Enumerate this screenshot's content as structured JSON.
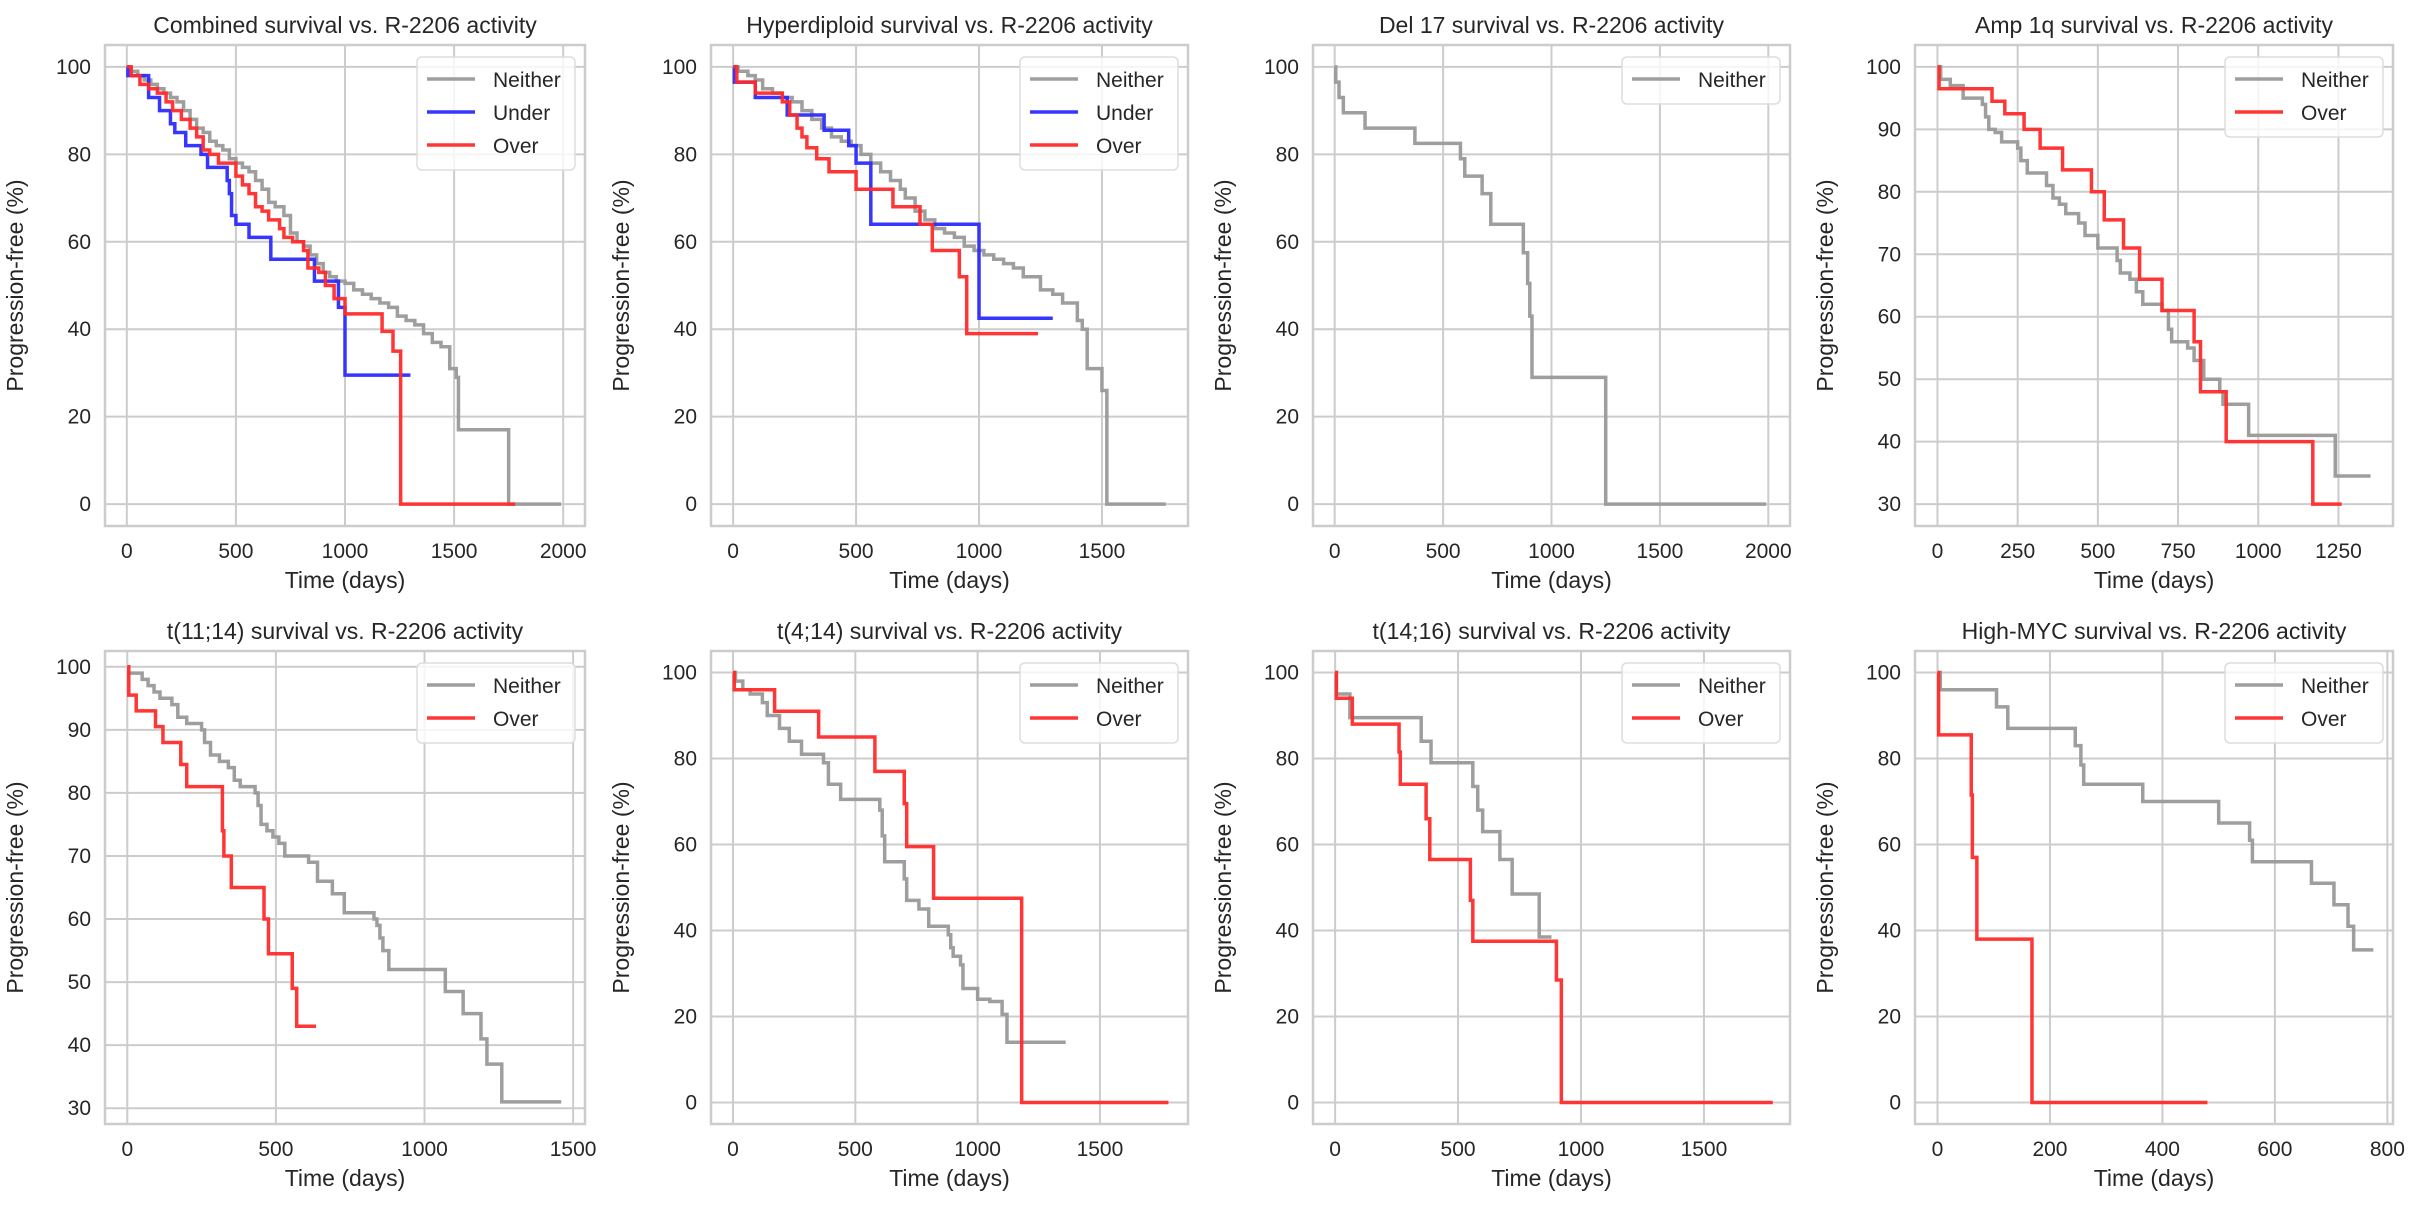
{
  "figure": {
    "layout": "2 rows x 4 columns",
    "series_colors": {
      "Neither": "#999999",
      "Under": "#2b2bff",
      "Over": "#ff2b2b"
    },
    "grid_color": "#cccccc",
    "frame_color": "#cccccc"
  },
  "chart_data": [
    {
      "type": "line",
      "step": true,
      "title": "Combined survival vs. R-2206 activity",
      "xlabel": "Time (days)",
      "ylabel": "Progression-free (%)",
      "xlim": [
        -100,
        2100
      ],
      "ylim": [
        -5,
        105
      ],
      "xticks": [
        0,
        500,
        1000,
        1500,
        2000
      ],
      "yticks": [
        0,
        20,
        40,
        60,
        80,
        100
      ],
      "grid": true,
      "legend": "top-right",
      "series": [
        {
          "name": "Neither",
          "x": [
            0,
            20,
            50,
            80,
            110,
            140,
            170,
            200,
            230,
            260,
            290,
            320,
            350,
            380,
            410,
            440,
            470,
            500,
            530,
            560,
            590,
            620,
            650,
            680,
            720,
            750,
            780,
            810,
            840,
            870,
            900,
            930,
            960,
            1000,
            1040,
            1080,
            1120,
            1160,
            1200,
            1240,
            1280,
            1320,
            1360,
            1400,
            1440,
            1480,
            1510,
            1520,
            1750,
            1990
          ],
          "y": [
            100,
            99,
            98,
            97,
            96,
            95,
            94,
            93,
            92,
            90,
            88,
            86,
            85,
            83,
            82,
            81,
            79,
            78,
            77,
            76,
            74,
            72,
            69,
            68,
            66,
            62,
            60,
            59,
            57,
            55,
            53,
            52,
            51,
            50.5,
            49,
            48,
            47,
            46,
            45,
            43,
            42,
            41,
            39,
            37,
            36,
            31,
            29,
            17,
            0,
            0
          ]
        },
        {
          "name": "Under",
          "x": [
            0,
            5,
            90,
            100,
            130,
            150,
            200,
            220,
            270,
            340,
            370,
            460,
            470,
            480,
            500,
            560,
            660,
            850,
            860,
            970,
            1000,
            1300
          ],
          "y": [
            100,
            98,
            98,
            93,
            93,
            90,
            87,
            85,
            82,
            80,
            77,
            74,
            71,
            66,
            64,
            61,
            56,
            56,
            51,
            45,
            29.5,
            29.5
          ]
        },
        {
          "name": "Over",
          "x": [
            0,
            20,
            60,
            100,
            140,
            180,
            210,
            250,
            290,
            320,
            350,
            380,
            420,
            470,
            500,
            530,
            560,
            590,
            620,
            650,
            700,
            720,
            760,
            810,
            830,
            880,
            910,
            950,
            1000,
            1170,
            1220,
            1255,
            1780
          ],
          "y": [
            100,
            98,
            96,
            95,
            94,
            92,
            90,
            88,
            86,
            84,
            81,
            80,
            78,
            78,
            75,
            73,
            71,
            68,
            67,
            65,
            63,
            61,
            60,
            58,
            54,
            53,
            50,
            47,
            43.5,
            39.5,
            35,
            0,
            0
          ]
        }
      ]
    },
    {
      "type": "line",
      "step": true,
      "title": "Hyperdiploid survival vs. R-2206 activity",
      "xlabel": "Time (days)",
      "ylabel": "Progression-free (%)",
      "xlim": [
        -90,
        1850
      ],
      "ylim": [
        -5,
        105
      ],
      "xticks": [
        0,
        500,
        1000,
        1500
      ],
      "yticks": [
        0,
        20,
        40,
        60,
        80,
        100
      ],
      "grid": true,
      "legend": "top-right",
      "series": [
        {
          "name": "Neither",
          "x": [
            0,
            20,
            60,
            90,
            120,
            160,
            200,
            240,
            280,
            320,
            360,
            400,
            440,
            480,
            520,
            560,
            600,
            640,
            680,
            700,
            740,
            780,
            820,
            860,
            900,
            940,
            980,
            1020,
            1060,
            1100,
            1140,
            1180,
            1250,
            1300,
            1340,
            1400,
            1420,
            1440,
            1500,
            1520,
            1760
          ],
          "y": [
            100,
            99,
            98,
            97,
            95,
            94,
            93,
            92,
            90,
            88,
            86,
            84,
            83,
            82,
            80,
            78,
            76,
            74,
            72,
            70,
            67,
            65,
            63,
            62,
            61,
            59,
            58,
            57,
            56,
            55,
            54,
            52,
            49,
            48,
            46,
            42,
            40,
            31,
            26,
            0,
            0
          ]
        },
        {
          "name": "Under",
          "x": [
            0,
            5,
            90,
            220,
            370,
            470,
            500,
            560,
            1000,
            1300
          ],
          "y": [
            100,
            96.5,
            93,
            89,
            85.5,
            82,
            78,
            64,
            42.5,
            42.5
          ]
        },
        {
          "name": "Over",
          "x": [
            0,
            15,
            90,
            200,
            230,
            260,
            280,
            300,
            340,
            390,
            500,
            650,
            760,
            810,
            920,
            950,
            1240
          ],
          "y": [
            100,
            96.5,
            94,
            92,
            89,
            86,
            84,
            81.5,
            79,
            76,
            72,
            68,
            64,
            58,
            52,
            39,
            39
          ]
        }
      ]
    },
    {
      "type": "line",
      "step": true,
      "title": "Del 17 survival vs. R-2206 activity",
      "xlabel": "Time (days)",
      "ylabel": "Progression-free (%)",
      "xlim": [
        -100,
        2100
      ],
      "ylim": [
        -5,
        105
      ],
      "xticks": [
        0,
        500,
        1000,
        1500,
        2000
      ],
      "yticks": [
        0,
        20,
        40,
        60,
        80,
        100
      ],
      "grid": true,
      "legend": "top-right",
      "series": [
        {
          "name": "Neither",
          "x": [
            0,
            5,
            20,
            40,
            140,
            370,
            580,
            600,
            680,
            720,
            870,
            890,
            900,
            910,
            1250,
            1990
          ],
          "y": [
            100,
            96.5,
            93,
            89.5,
            86,
            82.5,
            79,
            75,
            71,
            64,
            57.5,
            50.5,
            43,
            29,
            0,
            0
          ]
        }
      ]
    },
    {
      "type": "line",
      "step": true,
      "title": "Amp 1q survival vs. R-2206 activity",
      "xlabel": "Time (days)",
      "ylabel": "Progression-free (%)",
      "xlim": [
        -70,
        1420
      ],
      "ylim": [
        26.5,
        103.5
      ],
      "xticks": [
        0,
        250,
        500,
        750,
        1000,
        1250
      ],
      "yticks": [
        30,
        40,
        50,
        60,
        70,
        80,
        90,
        100
      ],
      "grid": true,
      "legend": "top-right",
      "series": [
        {
          "name": "Neither",
          "x": [
            0,
            10,
            40,
            80,
            140,
            150,
            160,
            180,
            200,
            250,
            260,
            280,
            340,
            360,
            380,
            400,
            440,
            460,
            500,
            520,
            560,
            570,
            600,
            620,
            640,
            700,
            720,
            730,
            780,
            800,
            830,
            880,
            890,
            970,
            1240,
            1350
          ],
          "y": [
            100,
            98,
            97,
            95,
            94,
            92,
            90,
            89.5,
            88,
            87,
            85,
            83,
            81,
            79,
            78,
            76.5,
            75,
            73,
            71,
            71,
            69,
            67,
            66,
            64,
            62,
            61,
            58,
            56,
            55,
            53,
            50,
            48,
            46,
            41,
            34.5,
            34.5
          ]
        },
        {
          "name": "Over",
          "x": [
            0,
            5,
            170,
            210,
            270,
            320,
            390,
            480,
            520,
            580,
            630,
            700,
            800,
            820,
            900,
            1170,
            1260
          ],
          "y": [
            100,
            96.5,
            94.5,
            92.5,
            90,
            87,
            83.5,
            80,
            75.5,
            71,
            66,
            61,
            56,
            48,
            40,
            30,
            30
          ]
        }
      ]
    },
    {
      "type": "line",
      "step": true,
      "title": "t(11;14) survival vs. R-2206 activity",
      "xlabel": "Time (days)",
      "ylabel": "Progression-free (%)",
      "xlim": [
        -75,
        1540
      ],
      "ylim": [
        27.5,
        102.5
      ],
      "xticks": [
        0,
        500,
        1000,
        1500
      ],
      "yticks": [
        30,
        40,
        50,
        60,
        70,
        80,
        90,
        100
      ],
      "grid": true,
      "legend": "top-right",
      "series": [
        {
          "name": "Neither",
          "x": [
            0,
            50,
            70,
            90,
            110,
            150,
            170,
            200,
            250,
            260,
            280,
            310,
            340,
            360,
            380,
            430,
            440,
            450,
            470,
            490,
            510,
            530,
            610,
            640,
            690,
            730,
            830,
            840,
            850,
            860,
            880,
            1070,
            1130,
            1190,
            1210,
            1260,
            1460
          ],
          "y": [
            99,
            98,
            97,
            96,
            95,
            94,
            92,
            91,
            90,
            88,
            86,
            85,
            84,
            82,
            81,
            80,
            78,
            75,
            74,
            73,
            72,
            70,
            69,
            66,
            64,
            61,
            60,
            59,
            57,
            55,
            52,
            48.5,
            45,
            41,
            37,
            31,
            31
          ]
        },
        {
          "name": "Over",
          "x": [
            0,
            5,
            30,
            95,
            120,
            180,
            200,
            320,
            325,
            350,
            460,
            475,
            555,
            570,
            635
          ],
          "y": [
            100,
            95.5,
            93,
            90.5,
            88,
            84.5,
            81,
            74,
            70,
            65,
            60,
            54.5,
            49,
            43,
            43
          ]
        }
      ]
    },
    {
      "type": "line",
      "step": true,
      "title": "t(4;14) survival vs. R-2206 activity",
      "xlabel": "Time (days)",
      "ylabel": "Progression-free (%)",
      "xlim": [
        -90,
        1860
      ],
      "ylim": [
        -5,
        105
      ],
      "xticks": [
        0,
        500,
        1000,
        1500
      ],
      "yticks": [
        0,
        20,
        40,
        60,
        80,
        100
      ],
      "grid": true,
      "legend": "top-right",
      "series": [
        {
          "name": "Neither",
          "x": [
            0,
            10,
            40,
            70,
            120,
            140,
            190,
            230,
            280,
            370,
            390,
            440,
            600,
            610,
            620,
            640,
            700,
            710,
            760,
            800,
            880,
            890,
            900,
            930,
            940,
            1000,
            1050,
            1100,
            1120,
            1360
          ],
          "y": [
            100,
            98,
            96,
            95,
            93,
            90,
            87,
            84,
            81,
            79,
            74,
            70.5,
            68,
            62,
            56,
            56,
            52,
            47,
            45,
            41,
            39,
            36,
            34,
            32,
            26.5,
            24,
            23.5,
            20.5,
            14,
            14
          ]
        },
        {
          "name": "Over",
          "x": [
            0,
            5,
            170,
            350,
            580,
            700,
            710,
            820,
            1180,
            1780
          ],
          "y": [
            100,
            96,
            91,
            85,
            77,
            69.5,
            59.5,
            47.5,
            0,
            0
          ]
        }
      ]
    },
    {
      "type": "line",
      "step": true,
      "title": "t(14;16) survival vs. R-2206 activity",
      "xlabel": "Time (days)",
      "ylabel": "Progression-free (%)",
      "xlim": [
        -90,
        1850
      ],
      "ylim": [
        -5,
        105
      ],
      "xticks": [
        0,
        500,
        1000,
        1500
      ],
      "yticks": [
        0,
        20,
        40,
        60,
        80,
        100
      ],
      "grid": true,
      "legend": "top-right",
      "series": [
        {
          "name": "Neither",
          "x": [
            0,
            5,
            60,
            350,
            390,
            560,
            580,
            600,
            670,
            720,
            830,
            880
          ],
          "y": [
            100,
            95,
            89.5,
            84,
            79,
            73.5,
            68,
            63,
            56.5,
            48.5,
            38.5,
            38.5
          ]
        },
        {
          "name": "Over",
          "x": [
            0,
            5,
            70,
            260,
            265,
            370,
            385,
            550,
            555,
            560,
            900,
            910,
            920,
            1780
          ],
          "y": [
            100,
            94,
            88,
            81.5,
            74,
            66,
            56.5,
            47,
            47,
            37.5,
            28.5,
            28.5,
            0,
            0
          ]
        }
      ]
    },
    {
      "type": "line",
      "step": true,
      "title": "High-MYC survival vs. R-2206 activity",
      "xlabel": "Time (days)",
      "ylabel": "Progression-free (%)",
      "xlim": [
        -40,
        810
      ],
      "ylim": [
        -5,
        105
      ],
      "xticks": [
        0,
        200,
        400,
        600,
        800
      ],
      "yticks": [
        0,
        20,
        40,
        60,
        80,
        100
      ],
      "grid": true,
      "legend": "top-right",
      "series": [
        {
          "name": "Neither",
          "x": [
            0,
            5,
            105,
            125,
            245,
            255,
            260,
            365,
            500,
            555,
            560,
            665,
            705,
            730,
            740,
            775
          ],
          "y": [
            100,
            96,
            92,
            87,
            83,
            78.5,
            74,
            70,
            65,
            61,
            56,
            51,
            46,
            41,
            35.5,
            35.5
          ]
        },
        {
          "name": "Over",
          "x": [
            0,
            2,
            60,
            62,
            65,
            70,
            168,
            480
          ],
          "y": [
            100,
            85.5,
            71.5,
            57,
            57,
            38,
            0,
            0
          ]
        }
      ]
    }
  ]
}
